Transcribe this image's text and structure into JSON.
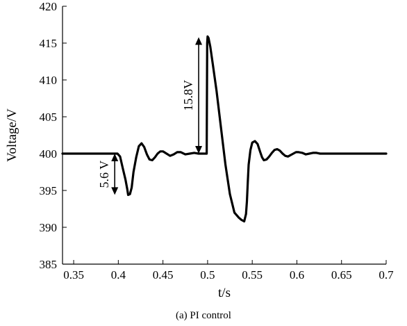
{
  "chart_data": {
    "type": "line",
    "xlabel": "t/s",
    "ylabel": "Voltage/V",
    "caption": "(a)  PI control",
    "xlim": [
      0.3375,
      0.7
    ],
    "ylim": [
      385,
      420
    ],
    "xticks": [
      0.35,
      0.4,
      0.45,
      0.5,
      0.55,
      0.6,
      0.65,
      0.7
    ],
    "yticks": [
      385,
      390,
      395,
      400,
      405,
      410,
      415,
      420
    ],
    "xtick_labels": [
      "0.35",
      "0.4",
      "0.45",
      "0.5",
      "0.55",
      "0.6",
      "0.65",
      "0.7"
    ],
    "ytick_labels": [
      "385",
      "390",
      "395",
      "400",
      "405",
      "410",
      "415",
      "420"
    ],
    "grid": false,
    "series": [
      {
        "x": [
          0.3375,
          0.35,
          0.37,
          0.39,
          0.399,
          0.402,
          0.405,
          0.408,
          0.41,
          0.411,
          0.413,
          0.415,
          0.417,
          0.42,
          0.423,
          0.426,
          0.429,
          0.432,
          0.435,
          0.438,
          0.441,
          0.444,
          0.447,
          0.45,
          0.454,
          0.458,
          0.462,
          0.466,
          0.47,
          0.475,
          0.48,
          0.485,
          0.49,
          0.495,
          0.499,
          0.4995,
          0.5,
          0.501,
          0.503,
          0.506,
          0.51,
          0.515,
          0.52,
          0.525,
          0.53,
          0.535,
          0.538,
          0.541,
          0.543,
          0.544,
          0.545,
          0.546,
          0.548,
          0.55,
          0.553,
          0.556,
          0.559,
          0.561,
          0.563,
          0.566,
          0.569,
          0.572,
          0.575,
          0.578,
          0.581,
          0.584,
          0.587,
          0.59,
          0.593,
          0.596,
          0.599,
          0.602,
          0.606,
          0.61,
          0.614,
          0.618,
          0.622,
          0.626,
          0.63,
          0.64,
          0.65,
          0.66,
          0.67,
          0.68,
          0.69,
          0.7
        ],
        "y": [
          400,
          400,
          400,
          400,
          400,
          399.6,
          398.0,
          396.5,
          395.2,
          394.4,
          394.5,
          395.4,
          397.5,
          399.5,
          401.0,
          401.4,
          400.9,
          399.9,
          399.2,
          399.1,
          399.5,
          400.0,
          400.3,
          400.3,
          400.0,
          399.7,
          399.9,
          400.2,
          400.2,
          399.9,
          400.0,
          400.1,
          400.0,
          400.0,
          400.0,
          415.0,
          415.9,
          415.7,
          414.5,
          412.0,
          408.5,
          403.5,
          398.5,
          394.5,
          392.0,
          391.3,
          391.0,
          390.8,
          391.8,
          393.5,
          396.0,
          398.5,
          400.5,
          401.5,
          401.7,
          401.3,
          400.2,
          399.5,
          399.1,
          399.2,
          399.6,
          400.1,
          400.5,
          400.6,
          400.4,
          400.0,
          399.7,
          399.6,
          399.8,
          400.0,
          400.2,
          400.2,
          400.1,
          399.9,
          400.0,
          400.1,
          400.1,
          400.0,
          400.0,
          400.0,
          400.0,
          400.0,
          400.0,
          400.0,
          400.0,
          400.0
        ]
      }
    ],
    "annotations": [
      {
        "text": "5.6 V",
        "x": 0.396,
        "y_from": 400,
        "y_to": 394.4
      },
      {
        "text": "15.8V",
        "x": 0.49,
        "y_from": 400,
        "y_to": 415.8
      }
    ]
  }
}
